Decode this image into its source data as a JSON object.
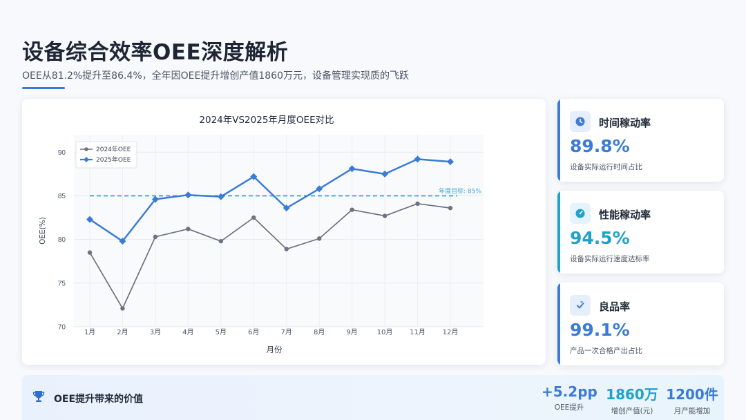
{
  "header": {
    "title": "设备综合效率OEE深度解析",
    "subtitle": "OEE从81.2%提升至86.4%，全年因OEE提升增创产值1860万元，设备管理实现质的飞跃"
  },
  "chart_data": {
    "type": "line",
    "title": "2024年VS2025年月度OEE对比",
    "xlabel": "月份",
    "ylabel": "OEE(%)",
    "categories": [
      "1月",
      "2月",
      "3月",
      "4月",
      "5月",
      "6月",
      "7月",
      "8月",
      "9月",
      "10月",
      "11月",
      "12月"
    ],
    "series": [
      {
        "name": "2024年OEE",
        "color": "#6b7280",
        "marker": "circle",
        "values": [
          78.5,
          72.1,
          80.3,
          81.2,
          79.8,
          82.5,
          78.9,
          80.1,
          83.4,
          82.7,
          84.1,
          83.6
        ]
      },
      {
        "name": "2025年OEE",
        "color": "#3b7bd6",
        "marker": "diamond",
        "values": [
          82.3,
          79.8,
          84.6,
          85.1,
          84.9,
          87.2,
          83.6,
          85.8,
          88.1,
          87.5,
          89.2,
          88.9
        ]
      }
    ],
    "target": {
      "label": "年度目标: 85%",
      "value": 85,
      "color": "#3aa8d8"
    },
    "ylim": [
      70,
      92
    ],
    "yticks": [
      70,
      75,
      80,
      85,
      90
    ],
    "grid": true,
    "legend": "top-left"
  },
  "kpis": [
    {
      "title": "时间稼动率",
      "value": "89.8%",
      "desc": "设备实际运行时间占比",
      "color": "#3b7bd6",
      "icon": "clock-icon"
    },
    {
      "title": "性能稼动率",
      "value": "94.5%",
      "desc": "设备实际运行速度达标率",
      "color": "#1fa2c9",
      "icon": "gauge-icon"
    },
    {
      "title": "良品率",
      "value": "99.1%",
      "desc": "产品一次合格产出占比",
      "color": "#3b7bd6",
      "icon": "check-icon"
    }
  ],
  "value_bar": {
    "title": "OEE提升带来的价值",
    "icon": "trophy-icon",
    "metrics": [
      {
        "value": "+5.2pp",
        "label": "OEE提升",
        "color": "#3b7bd6"
      },
      {
        "value": "1860万",
        "label": "增创产值(元)",
        "color": "#1fa2c9"
      },
      {
        "value": "1200件",
        "label": "月产能增加",
        "color": "#3b7bd6"
      }
    ]
  }
}
